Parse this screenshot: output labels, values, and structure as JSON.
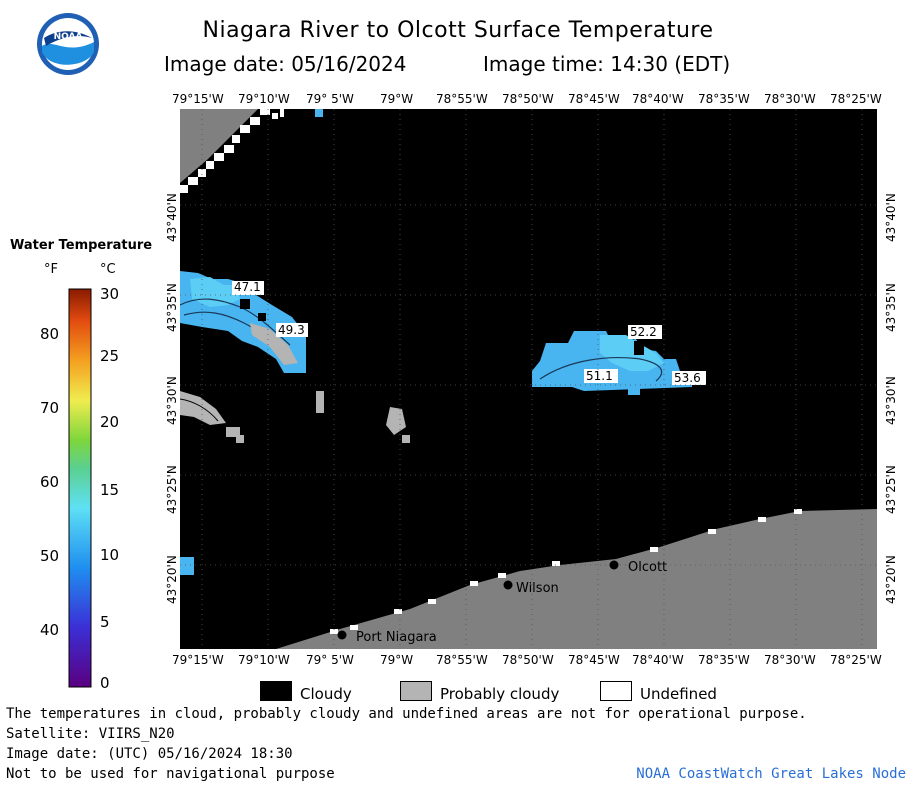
{
  "title": "Niagara River to Olcott Surface Temperature",
  "image_date_label": "Image date: 05/16/2024",
  "image_time_label": "Image time: 14:30 (EDT)",
  "longitude_ticks": [
    "79°15'W",
    "79°10'W",
    "79° 5'W",
    "79°W",
    "78°55'W",
    "78°50'W",
    "78°45'W",
    "78°40'W",
    "78°35'W",
    "78°30'W",
    "78°25'W"
  ],
  "latitude_ticks": [
    "43°40'N",
    "43°35'N",
    "43°30'N",
    "43°25'N",
    "43°20'N"
  ],
  "legend": {
    "title": "Water Temperature",
    "unit_f": "°F",
    "unit_c": "°C",
    "fahrenheit_labels": [
      "80",
      "70",
      "60",
      "50",
      "40"
    ],
    "celsius_labels": [
      "30",
      "25",
      "20",
      "15",
      "10",
      "5",
      "0"
    ],
    "range_c": [
      0,
      30
    ]
  },
  "temperature_labels": [
    "47.1",
    "49.3",
    "52.2",
    "51.1",
    "53.6"
  ],
  "places": [
    "Olcott",
    "Wilson",
    "Port Niagara"
  ],
  "key": {
    "cloudy": "Cloudy",
    "probably_cloudy": "Probably cloudy",
    "undefined": "Undefined"
  },
  "footer": {
    "line1": "The temperatures in cloud, probably cloudy and undefined areas are not for operational purpose.",
    "line2": "Satellite: VIIRS_N20",
    "line3": "Image date: (UTC) 05/16/2024  18:30",
    "line4": "Not to be used for navigational purpose",
    "credit": "NOAA CoastWatch Great Lakes Node"
  },
  "logo_text": "NOAA",
  "colors": {
    "cloudy": "#000000",
    "land": "#808080",
    "probably_cloudy": "#b4b4b4",
    "water_cold": "#48b4f0",
    "water_warm": "#5ccdf5",
    "credit": "#2a6fd6"
  }
}
